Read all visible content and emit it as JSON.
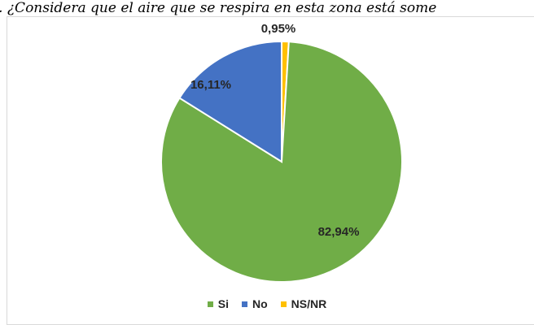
{
  "caption": "a. ¿Considera que el aire que se respira en esta zona está some",
  "chart_data": {
    "type": "pie",
    "categories": [
      "Si",
      "No",
      "NS/NR"
    ],
    "values": [
      82.94,
      16.11,
      0.95
    ],
    "labels": [
      "82,94%",
      "16,11%",
      "0,95%"
    ],
    "colors": [
      "#70ad47",
      "#4472c4",
      "#ffc000"
    ],
    "legend_position": "bottom"
  }
}
